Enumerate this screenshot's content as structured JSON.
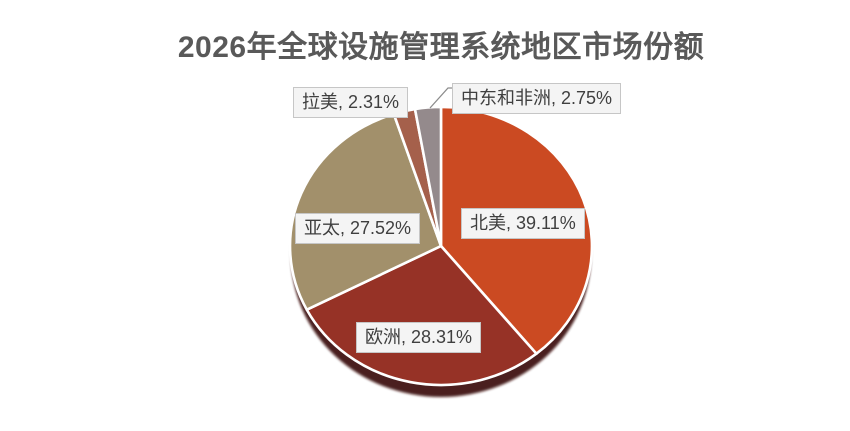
{
  "chart_data": {
    "type": "pie",
    "title": "2026年全球设施管理系统地区市场份额",
    "unit": "%",
    "start_angle_deg": 0,
    "direction": "clockwise",
    "legend_position": "none",
    "label_style": "boxed data labels with category name and percent",
    "slices": [
      {
        "key": "north-america",
        "name": "北美",
        "value": 39.11,
        "label": "北美, 39.11%",
        "color": "#CB4A22",
        "label_placement": "inside"
      },
      {
        "key": "europe",
        "name": "欧洲",
        "value": 28.31,
        "label": "欧洲, 28.31%",
        "color": "#963226",
        "label_placement": "inside"
      },
      {
        "key": "asia-pacific",
        "name": "亚太",
        "value": 27.52,
        "label": "亚太, 27.52%",
        "color": "#A2906B",
        "label_placement": "inside"
      },
      {
        "key": "latin-america",
        "name": "拉美",
        "value": 2.31,
        "label": "拉美, 2.31%",
        "color": "#A5604B",
        "label_placement": "outside"
      },
      {
        "key": "middle-east-africa",
        "name": "中东和非洲",
        "value": 2.75,
        "label": "中东和非洲, 2.75%",
        "color": "#948A8C",
        "label_placement": "outside-callout"
      }
    ],
    "styles": {
      "background": "#FFFFFF",
      "title_color": "#595959",
      "slice_border_color": "#FFFFFF",
      "label_bg": "#F4F4F4",
      "label_border": "#C6C6C6",
      "label_text_color": "#3F3F3F",
      "leader_line_color": "#8C8C8C",
      "shadow_color": "#3A0F09"
    }
  }
}
